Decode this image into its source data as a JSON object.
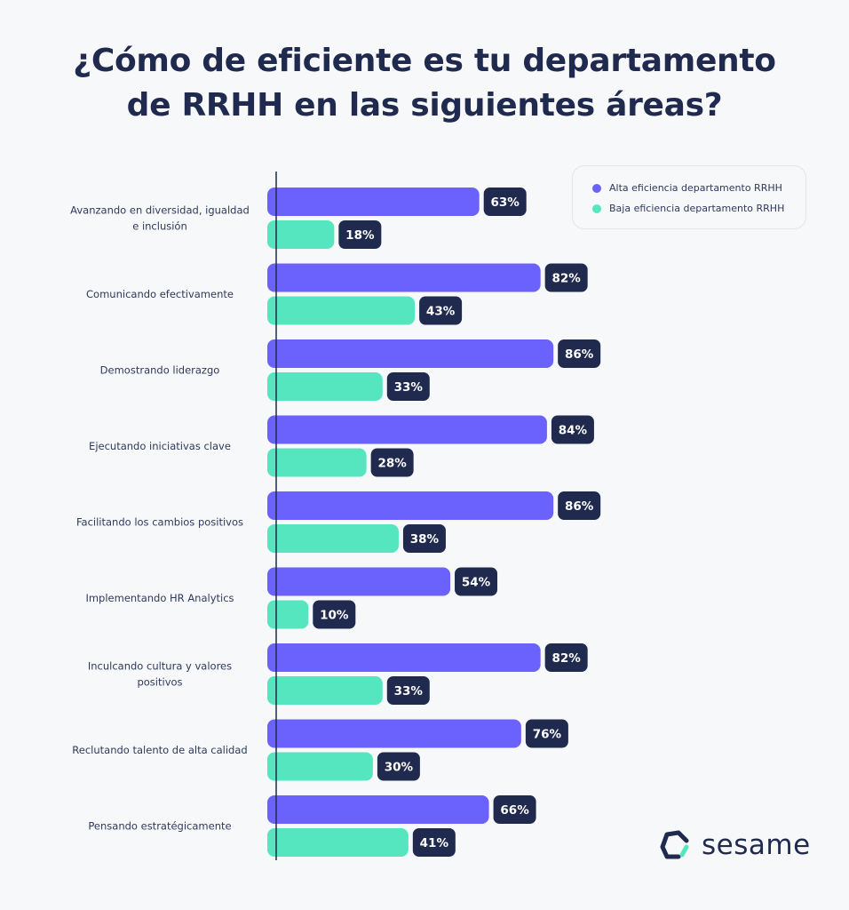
{
  "title_line1": "¿Cómo de eficiente es tu departamento",
  "title_line2": "de RRHH en las siguientes áreas?",
  "brand": "sesame",
  "colors": {
    "high": "#6b62fd",
    "low": "#55e6bf",
    "label_bg": "#1f2a4e",
    "text": "#1f2a4e"
  },
  "chart_data": {
    "type": "bar",
    "orientation": "horizontal",
    "categories": [
      [
        "Avanzando en diversidad, igualdad",
        "e inclusión"
      ],
      [
        "Comunicando efectivamente"
      ],
      [
        "Demostrando liderazgo"
      ],
      [
        "Ejecutando iniciativas clave"
      ],
      [
        "Facilitando los cambios positivos"
      ],
      [
        "Implementando HR Analytics"
      ],
      [
        "Inculcando cultura y valores",
        "positivos"
      ],
      [
        "Reclutando talento de alta calidad"
      ],
      [
        "Pensando estratégicamente"
      ]
    ],
    "series": [
      {
        "name": "Alta eficiencia departamento RRHH",
        "values": [
          63,
          82,
          86,
          84,
          86,
          54,
          82,
          76,
          66
        ]
      },
      {
        "name": "Baja eficiencia departamento RRHH",
        "values": [
          18,
          43,
          33,
          28,
          38,
          10,
          33,
          30,
          41
        ]
      }
    ],
    "unit": "%",
    "xlim": [
      0,
      100
    ],
    "grid": false,
    "legend": "top-right"
  }
}
